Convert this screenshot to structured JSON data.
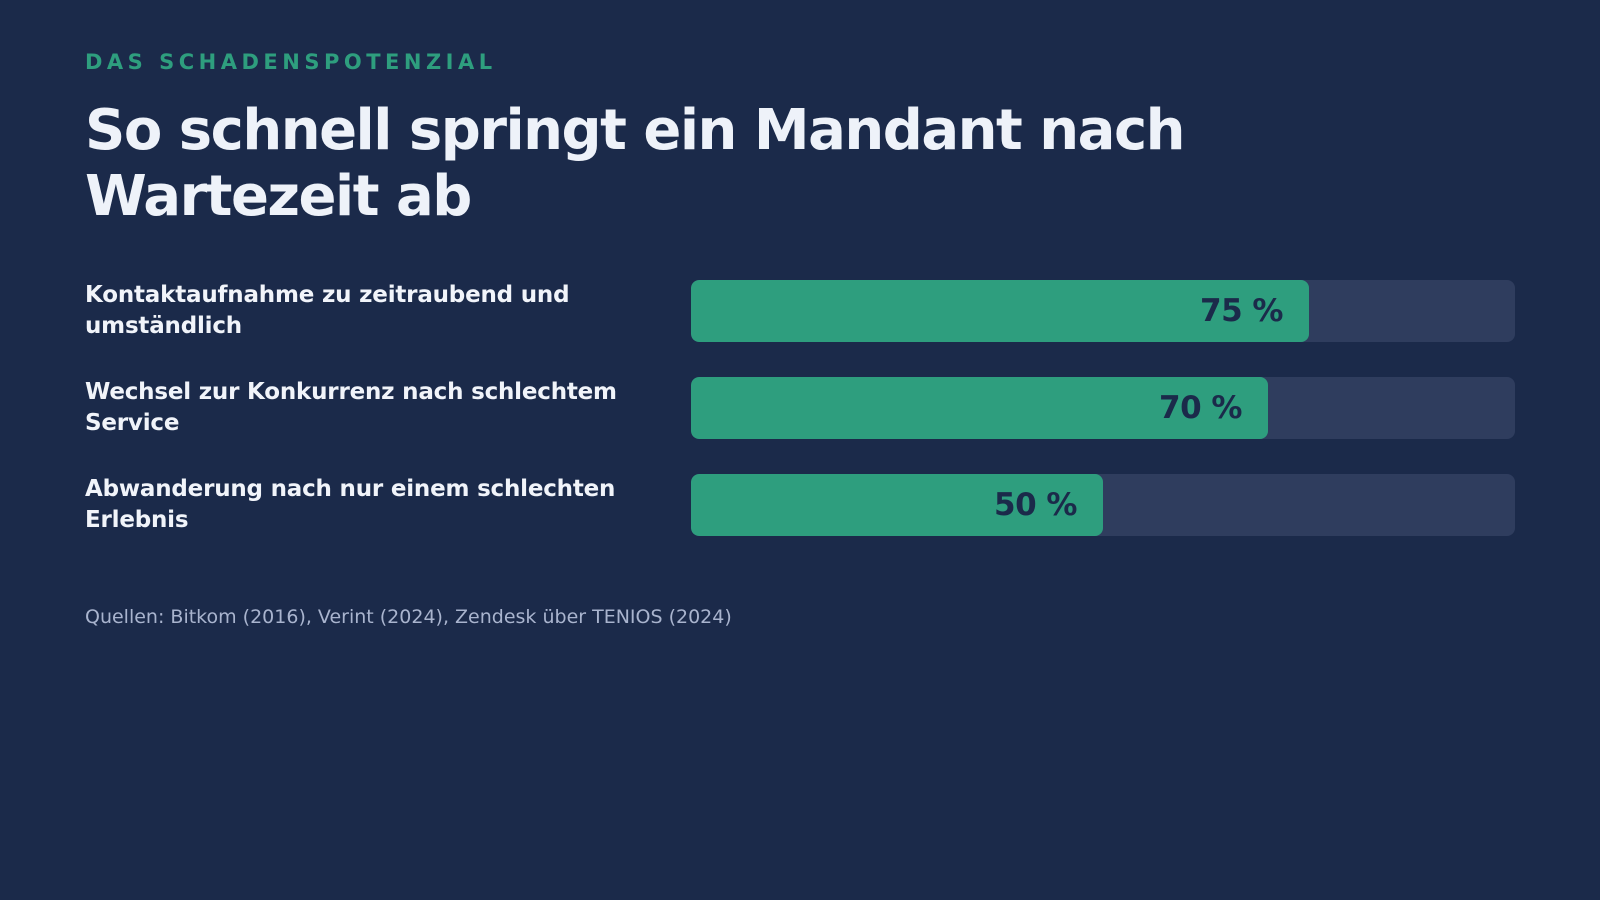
{
  "header": {
    "eyebrow": "DAS SCHADENSPOTENZIAL",
    "title": "So schnell springt ein Mandant nach Wartezeit ab"
  },
  "chart_data": {
    "type": "bar",
    "orientation": "horizontal",
    "categories": [
      "Kontaktaufnahme zu zeitraubend und umständlich",
      "Wechsel zur Konkurrenz nach schlechtem Service",
      "Abwanderung nach nur einem schlechten Erlebnis"
    ],
    "values": [
      75,
      70,
      50
    ],
    "value_labels": [
      "75 %",
      "70 %",
      "50 %"
    ],
    "xlim": [
      0,
      100
    ],
    "grid": false,
    "legend": "none",
    "title": "So schnell springt ein Mandant nach Wartezeit ab",
    "xlabel": "",
    "ylabel": ""
  },
  "footer": {
    "source": "Quellen: Bitkom (2016), Verint (2024), Zendesk über TENIOS (2024)"
  },
  "colors": {
    "background": "#1b2a4a",
    "accent": "#2e9e7e",
    "track": "#2f3d5e",
    "text": "#eef2f9",
    "muted": "#a9b4ce"
  }
}
